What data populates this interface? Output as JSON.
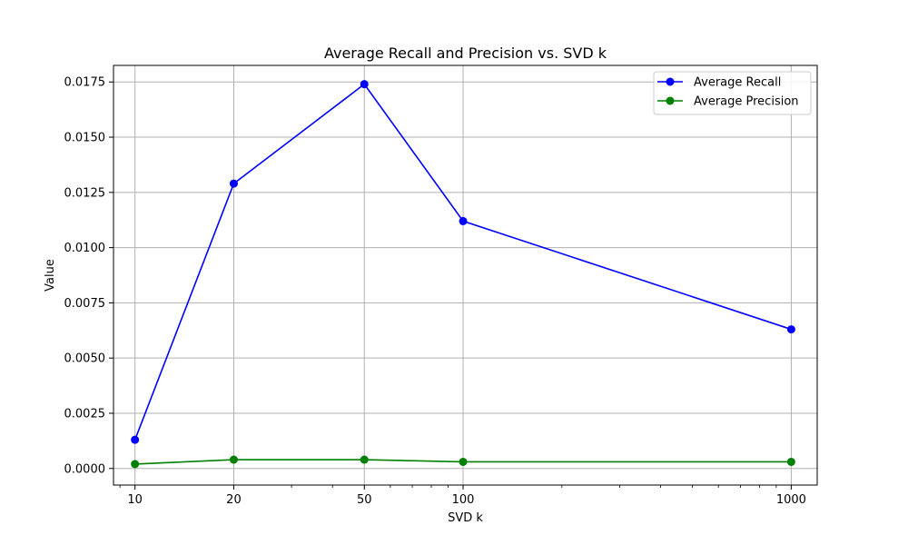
{
  "chart_data": {
    "type": "line",
    "title": "Average Recall and Precision vs. SVD k",
    "xlabel": "SVD k",
    "ylabel": "Value",
    "x_scale": "log",
    "x": [
      10,
      20,
      50,
      100,
      1000
    ],
    "x_ticks": [
      "10",
      "20",
      "50",
      "100",
      "1000"
    ],
    "y_ticks": [
      "0.0000",
      "0.0025",
      "0.0050",
      "0.0075",
      "0.0100",
      "0.0125",
      "0.0150",
      "0.0175"
    ],
    "ylim": [
      -0.00075,
      0.01825
    ],
    "xlim": [
      8.6,
      1200
    ],
    "grid": true,
    "legend_position": "top-right",
    "series": [
      {
        "name": "Average Recall",
        "color": "#0000ff",
        "values": [
          0.0013,
          0.0129,
          0.0174,
          0.0112,
          0.0063
        ]
      },
      {
        "name": "Average Precision",
        "color": "#008000",
        "values": [
          0.0002,
          0.0004,
          0.0004,
          0.0003,
          0.0003
        ]
      }
    ]
  }
}
